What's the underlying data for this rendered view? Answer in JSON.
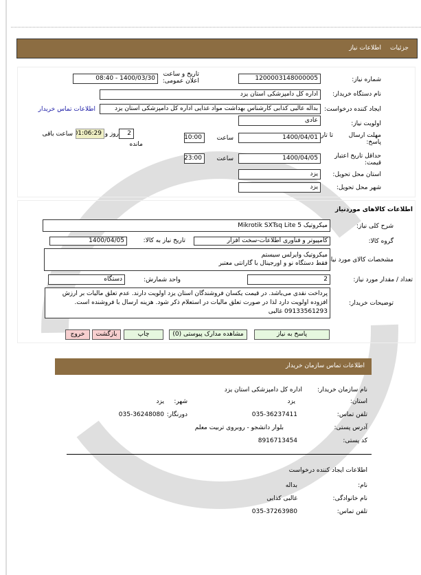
{
  "header": {
    "breadcrumb": [
      "جزئیات",
      "اطلاعات نیاز"
    ]
  },
  "need": {
    "number_label": "شماره نیاز:",
    "number": "1200003148000005",
    "announce_label": "تاریخ و ساعت اعلان عمومی:",
    "announce": "1400/03/30 - 08:40",
    "buyer_label": "نام دستگاه خریدار:",
    "buyer": "اداره کل دامپزشکی استان یزد",
    "creator_label": "ایجاد کننده درخواست:",
    "creator": "بداله غالبی کذابی کارشناس بهداشت مواد غذایی اداره کل دامپزشکی استان یزد",
    "contact_link": "اطلاعات تماس خریدار",
    "priority_label": "اولویت نیاز:",
    "priority": "عادی",
    "deadline_label": "مهلت ارسال پاسخ:",
    "to_date_label": "تا تاریخ:",
    "deadline_date": "1400/04/01",
    "time_label": "ساعت",
    "deadline_time": "10:00",
    "days": "2",
    "days_label": "روز و",
    "remaining_time": "01:06:29",
    "remaining_label": "ساعت باقی",
    "remaining_suffix": "مانده",
    "validity_label": "حداقل تاریخ اعتبار قیمت:",
    "validity_date": "1400/04/05",
    "validity_time": "23:00",
    "province_label": "استان محل تحویل:",
    "province": "یزد",
    "city_label": "شهر محل تحویل:",
    "city": "یزد"
  },
  "goods": {
    "title": "اطلاعات کالاهای موردنیاز",
    "desc_label": "شرح کلی نیاز:",
    "desc": "میکروتیک Mikrotik  SXTsq Lite 5",
    "group_label": "گروه کالا:",
    "group": "کامپیوتر و فناوری اطلاعات-سخت افزار",
    "need_date_label": "تاریخ نیاز به کالا:",
    "need_date": "1400/04/05",
    "spec_label": "مشخصات کالای مورد نیاز:",
    "spec_line1": "میکروتیک وایرلس سیستم",
    "spec_line2": "فقط دستگاه نو و اورجینال با گارانتی معتبر",
    "qty_label": "تعداد / مقدار مورد نیاز:",
    "qty": "2",
    "unit_label": "واحد شمارش:",
    "unit": "دستگاه",
    "notes_label": "توضیحات خریدار:",
    "notes": "پرداخت نقدی می‌باشد. در قیمت یکسان فروشندگان استان یزد اولویت دارند. عدم تعلق مالیات بر ارزش افزوده اولویت دارد لذا در صورت تعلق مالیات در استعلام ذکر شود. هزینه ارسال با فروشنده است. 09133561293 غالبی"
  },
  "buttons": {
    "reply": "پاسخ به نیاز",
    "attachments": "مشاهده مدارک پیوستی (0)",
    "print": "چاپ",
    "back": "بازگشت",
    "exit": "خروج"
  },
  "contact": {
    "title": "اطلاعات تماس سازمان خریدار",
    "org_label": "نام سازمان خریدار:",
    "org": "اداره کل دامپزشکی استان یزد",
    "province_label": "استان:",
    "province": "یزد",
    "city_label": "شهر:",
    "city": "یزد",
    "phone_label": "تلفن تماس:",
    "phone": "035-36237411",
    "fax_label": "دورنگار:",
    "fax": "035-36248080",
    "address_label": "آدرس پستی:",
    "address": "بلوار دانشجو - روبروی تربیت معلم",
    "postal_label": "کد پستی:",
    "postal": "8916713454",
    "creator_title": "اطلاعات ایجاد کننده درخواست",
    "name_label": "نام:",
    "name": "بداله",
    "family_label": "نام خانوادگی:",
    "family": "غالبی کذابی",
    "creator_phone_label": "تلفن تماس:",
    "creator_phone": "035-37263980"
  },
  "colors": {
    "header": "#8c6d42",
    "remaining_bg": "#efefc4",
    "action_btn": "#e6f7df",
    "nav_btn": "#f7cfcf",
    "link": "#1a1aa6"
  }
}
